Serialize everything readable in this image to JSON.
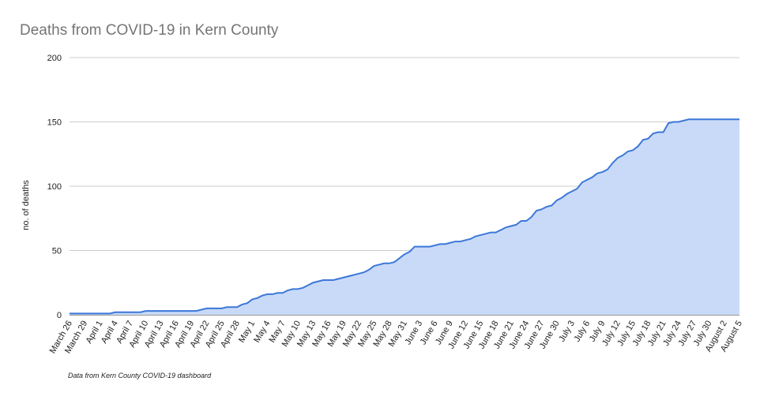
{
  "chart_data": {
    "type": "area",
    "title": "Deaths from COVID-19 in Kern County",
    "y_label": "no. of deaths",
    "note": "Data from Kern County COVID-19 dashboard",
    "categories": [
      "March 26",
      null,
      null,
      "March 29",
      null,
      null,
      "April 1",
      null,
      null,
      "April 4",
      null,
      null,
      "April 7",
      null,
      null,
      "April 10",
      null,
      null,
      "April 13",
      null,
      null,
      "April 16",
      null,
      null,
      "April 19",
      null,
      null,
      "April 22",
      null,
      null,
      "April 25",
      null,
      null,
      "April 28",
      null,
      null,
      "May 1",
      null,
      null,
      "May 4",
      null,
      null,
      "May 7",
      null,
      null,
      "May 10",
      null,
      null,
      "May 13",
      null,
      null,
      "May 16",
      null,
      null,
      "May 19",
      null,
      null,
      "May 22",
      null,
      null,
      "May 25",
      null,
      null,
      "May 28",
      null,
      null,
      "May 31",
      null,
      null,
      "June 3",
      null,
      null,
      "June 6",
      null,
      null,
      "June 9",
      null,
      null,
      "June 12",
      null,
      null,
      "June 15",
      null,
      null,
      "June 18",
      null,
      null,
      "June 21",
      null,
      null,
      "June 24",
      null,
      null,
      "June 27",
      null,
      null,
      "June 30",
      null,
      null,
      "July 3",
      null,
      null,
      "July 6",
      null,
      null,
      "July 9",
      null,
      null,
      "July 12",
      null,
      null,
      "July 15",
      null,
      null,
      "July 18",
      null,
      null,
      "July 21",
      null,
      null,
      "July 24",
      null,
      null,
      "July 27",
      null,
      null,
      "July 30",
      null,
      null,
      "August 2",
      null,
      null,
      "August 5"
    ],
    "values": [
      1,
      1,
      1,
      1,
      1,
      1,
      1,
      1,
      1,
      2,
      2,
      2,
      2,
      2,
      2,
      3,
      3,
      3,
      3,
      3,
      3,
      3,
      3,
      3,
      3,
      3,
      4,
      5,
      5,
      5,
      5,
      6,
      6,
      6,
      8,
      9,
      12,
      13,
      15,
      16,
      16,
      17,
      17,
      19,
      20,
      20,
      21,
      23,
      25,
      26,
      27,
      27,
      27,
      28,
      29,
      30,
      31,
      32,
      33,
      35,
      38,
      39,
      40,
      40,
      41,
      44,
      47,
      49,
      53,
      53,
      53,
      53,
      54,
      55,
      55,
      56,
      57,
      57,
      58,
      59,
      61,
      62,
      63,
      64,
      64,
      66,
      68,
      69,
      70,
      73,
      73,
      76,
      81,
      82,
      84,
      85,
      89,
      91,
      94,
      96,
      98,
      103,
      105,
      107,
      110,
      111,
      113,
      118,
      122,
      124,
      127,
      128,
      131,
      136,
      137,
      141,
      142,
      142,
      149,
      150,
      150,
      151,
      152,
      152,
      152,
      152,
      152,
      152,
      152,
      152,
      152,
      152,
      152
    ],
    "color": "#3c78d8",
    "fill_color": "#c9daf8",
    "ylim": [
      0,
      200
    ],
    "yticks": [
      0,
      50,
      100,
      150,
      200
    ],
    "grid": true
  }
}
